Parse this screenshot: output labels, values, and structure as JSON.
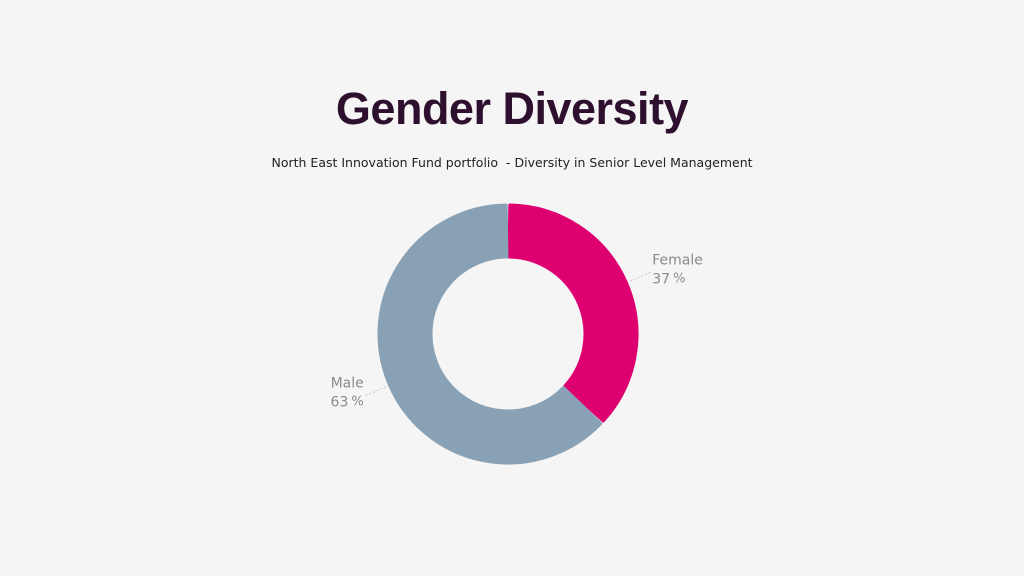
{
  "title": "Gender Diversity",
  "subtitle": "North East Innovation Fund portfolio  - Diversity in Senior Level Management",
  "chart_data": {
    "type": "pie",
    "variant": "donut",
    "title": "Gender Diversity",
    "subtitle": "North East Innovation Fund portfolio  - Diversity in Senior Level Management",
    "series": [
      {
        "name": "Female",
        "value": 37,
        "color": "#de0071"
      },
      {
        "name": "Male",
        "value": 63,
        "color": "#89a1b4"
      }
    ],
    "value_suffix": "%",
    "start_angle": "12 o'clock",
    "direction": "clockwise"
  }
}
